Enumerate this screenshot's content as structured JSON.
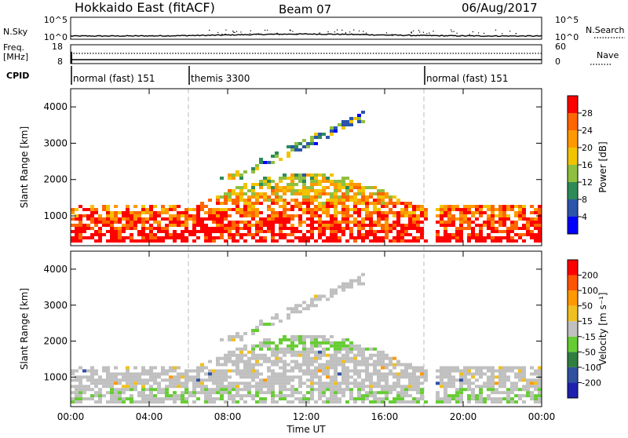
{
  "header": {
    "station": "Hokkaido East (fitACF)",
    "beam": "Beam 07",
    "date": "06/Aug/2017"
  },
  "noise_panel": {
    "left_label": "N.Sky",
    "right_label": "N.Search",
    "left_ticks": [
      "10^5",
      "10^0"
    ],
    "right_ticks": [
      "10^5",
      "10^0"
    ]
  },
  "freq_panel": {
    "left_label": "Freq.",
    "left_unit": "[MHz]",
    "left_ticks": [
      "18",
      "8"
    ],
    "right_label": "Nave",
    "right_ticks": [
      "60",
      "0"
    ]
  },
  "cpid": {
    "label": "CPID",
    "segments": [
      {
        "name": "normal (fast) 151",
        "start": 0,
        "end": 6
      },
      {
        "name": "themis 3300",
        "start": 6,
        "end": 18
      },
      {
        "name": "normal (fast) 151",
        "start": 18,
        "end": 24
      }
    ]
  },
  "time_axis": {
    "label": "Time UT",
    "ticks": [
      "00:00",
      "04:00",
      "08:00",
      "12:00",
      "16:00",
      "20:00",
      "00:00"
    ],
    "tick_values": [
      0,
      4,
      8,
      12,
      16,
      20,
      24
    ]
  },
  "chart_data": [
    {
      "type": "heatmap",
      "ylabel": "Slant Range [km]",
      "x_range": [
        0,
        24
      ],
      "ylim": [
        180,
        4500
      ],
      "y_ticks": [
        1000,
        2000,
        3000,
        4000
      ],
      "colorbar": {
        "label": "Power [dB]",
        "ticks": [
          "4",
          "8",
          "12",
          "16",
          "20",
          "24",
          "28"
        ],
        "colors": [
          "#0000ff",
          "#2a55aa",
          "#2e8b57",
          "#8fbf3f",
          "#f2c400",
          "#ff9900",
          "#ff6600",
          "#ff0000"
        ]
      }
    },
    {
      "type": "heatmap",
      "ylabel": "Slant Range [km]",
      "x_range": [
        0,
        24
      ],
      "ylim": [
        180,
        4500
      ],
      "y_ticks": [
        1000,
        2000,
        3000,
        4000
      ],
      "colorbar": {
        "label": "Velocity [m s⁻¹]",
        "ticks": [
          "200",
          "100",
          "50",
          "15",
          "-15",
          "-50",
          "-100",
          "-200"
        ],
        "colors": [
          "#2020b0",
          "#3050a0",
          "#2f7f3f",
          "#66cc33",
          "#c0c0c0",
          "#f0c020",
          "#ff9900",
          "#ff5500",
          "#ff0000"
        ]
      }
    }
  ]
}
